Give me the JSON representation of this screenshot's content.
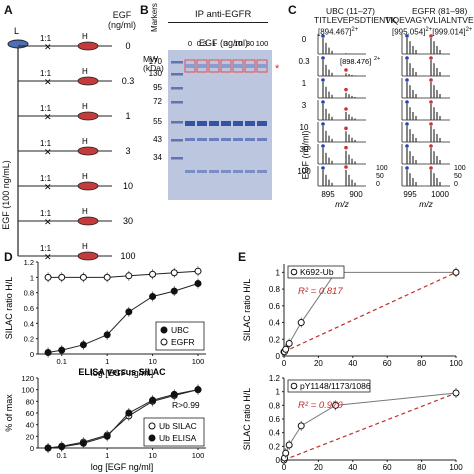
{
  "panels": {
    "A": {
      "letter": "A",
      "light_label": "L",
      "heavy_label": "H",
      "ratio_label": "1:1",
      "egf_header": "EGF\n(ng/ml)",
      "egf_stock": "EGF (100 ng/mL)",
      "doses": [
        "0",
        "0.3",
        "1",
        "3",
        "10",
        "30",
        "100"
      ]
    },
    "B": {
      "letter": "B",
      "title": "IP anti-EGFR",
      "mw_label": "MW\n(kDa)",
      "markers_label": "Markers",
      "egf_label": "EGF (ng/ml)",
      "lanes": [
        "0",
        "0.3",
        "1",
        "3",
        "10",
        "30",
        "100"
      ],
      "mw": [
        "170",
        "130",
        "95",
        "72",
        "55",
        "43",
        "34"
      ],
      "star": "*"
    },
    "C": {
      "letter": "C",
      "left_title": "UBC (11–27)",
      "left_seq": "TITLEVEPSDTIENVK",
      "left_mz": "[894.467]",
      "left_charge": "2+",
      "inset_mz": "[898.476]",
      "inset_charge": "2+",
      "right_title": "EGFR (81–98)",
      "right_seq": "TIQEVAGYVLIALNTVER",
      "right_mz1": "[995.054]",
      "right_mz2": "[999.014]",
      "right_charge": "2+",
      "egf_axis": "EGF (ng/ml)",
      "doses": [
        "0",
        "0.3",
        "1",
        "3",
        "10",
        "30",
        "100"
      ],
      "xticks_left": [
        "895",
        "900"
      ],
      "xticks_right": [
        "995",
        "1000"
      ],
      "yticks": [
        "100",
        "50",
        "0"
      ],
      "xlabel": "m/z"
    },
    "D": {
      "letter": "D"
    },
    "E": {
      "letter": "E"
    }
  },
  "chart_data": [
    {
      "id": "D-top",
      "type": "line",
      "xlabel": "log [EGF ng/ml]",
      "ylabel": "SILAC ratio H/L",
      "xlim": [
        0.03,
        150
      ],
      "ylim": [
        0,
        1.2
      ],
      "xscale": "log",
      "xticks": [
        "0.1",
        "1",
        "10",
        "100"
      ],
      "yticks": [
        "0",
        "0.2",
        "0.4",
        "0.6",
        "0.8",
        "1",
        "1.2"
      ],
      "legend_position": "right",
      "series": [
        {
          "name": "UBC",
          "x": [
            0.05,
            0.1,
            0.3,
            1,
            3,
            10,
            30,
            100
          ],
          "y": [
            0.02,
            0.05,
            0.12,
            0.25,
            0.55,
            0.75,
            0.82,
            0.92
          ]
        },
        {
          "name": "EGFR",
          "x": [
            0.05,
            0.1,
            0.3,
            1,
            3,
            10,
            30,
            100
          ],
          "y": [
            1.0,
            1.0,
            1.0,
            1.0,
            1.02,
            1.04,
            1.06,
            1.08
          ]
        }
      ]
    },
    {
      "id": "D-bottom",
      "type": "line",
      "title": "ELISA versus SILAC",
      "xlabel": "log [EGF ng/ml]",
      "ylabel": "% of max",
      "xlim": [
        0.03,
        150
      ],
      "ylim": [
        0,
        120
      ],
      "xscale": "log",
      "xticks": [
        "0.1",
        "1",
        "10",
        "100"
      ],
      "yticks": [
        "0",
        "20",
        "40",
        "60",
        "80",
        "100",
        "120"
      ],
      "annotation": "R>0.99",
      "legend_position": "bottom-right",
      "series": [
        {
          "name": "Ub SILAC",
          "x": [
            0.05,
            0.1,
            0.3,
            1,
            3,
            10,
            30,
            100
          ],
          "y": [
            0,
            3,
            10,
            22,
            55,
            80,
            90,
            100
          ]
        },
        {
          "name": "Ub ELISA",
          "x": [
            0.05,
            0.1,
            0.3,
            1,
            3,
            10,
            30,
            100
          ],
          "y": [
            0,
            2,
            8,
            20,
            60,
            82,
            92,
            100
          ]
        }
      ]
    },
    {
      "id": "E-top",
      "type": "scatter",
      "xlabel": "",
      "ylabel": "SILAC ratio H/L",
      "xlim": [
        0,
        100
      ],
      "ylim": [
        0,
        1.1
      ],
      "xticks": [
        "0",
        "20",
        "40",
        "60",
        "80",
        "100"
      ],
      "yticks": [
        "0",
        "0.1",
        "0.2",
        "0.3",
        "0.4",
        "0.5",
        "0.6",
        "0.7",
        "0.8",
        "0.9",
        "1"
      ],
      "legend": "K692-Ub",
      "r2": "R² = 0.817",
      "x": [
        0,
        0.3,
        1,
        3,
        10,
        30,
        100
      ],
      "y": [
        0.05,
        0.05,
        0.08,
        0.15,
        0.4,
        1.0,
        1.0
      ]
    },
    {
      "id": "E-bottom",
      "type": "scatter",
      "xlabel": "",
      "ylabel": "SILAC ratio H/L",
      "xlim": [
        0,
        100
      ],
      "ylim": [
        0,
        1.2
      ],
      "xticks": [
        "0",
        "20",
        "40",
        "60",
        "80",
        "100"
      ],
      "yticks": [
        "0",
        "0.2",
        "0.4",
        "0.6",
        "0.8",
        "1",
        "1.2"
      ],
      "legend": "pY1148/1173/1086",
      "r2": "R² = 0.970",
      "x": [
        0,
        0.3,
        1,
        3,
        10,
        30,
        100
      ],
      "y": [
        0.0,
        0.03,
        0.1,
        0.22,
        0.5,
        0.8,
        0.98
      ]
    }
  ]
}
